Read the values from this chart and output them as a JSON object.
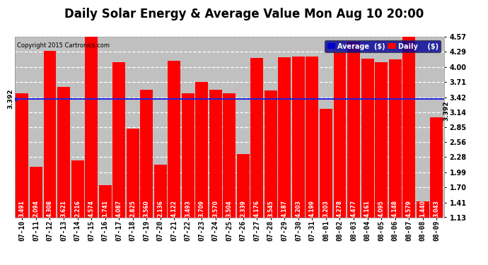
{
  "title": "Daily Solar Energy & Average Value Mon Aug 10 20:00",
  "copyright": "Copyright 2015 Cartronics.com",
  "categories": [
    "07-10",
    "07-11",
    "07-12",
    "07-13",
    "07-14",
    "07-15",
    "07-16",
    "07-17",
    "07-18",
    "07-19",
    "07-20",
    "07-21",
    "07-22",
    "07-23",
    "07-24",
    "07-25",
    "07-26",
    "07-27",
    "07-28",
    "07-29",
    "07-30",
    "07-31",
    "08-01",
    "08-02",
    "08-03",
    "08-04",
    "08-05",
    "08-06",
    "08-07",
    "08-08",
    "08-09"
  ],
  "values": [
    3.491,
    2.094,
    4.308,
    3.621,
    2.216,
    4.574,
    1.741,
    4.087,
    2.825,
    3.56,
    2.136,
    4.122,
    3.493,
    3.709,
    3.57,
    3.504,
    2.339,
    4.176,
    3.545,
    4.187,
    4.203,
    4.199,
    3.203,
    4.278,
    4.477,
    4.161,
    4.095,
    4.148,
    4.579,
    1.44,
    3.043
  ],
  "bar_color": "#ff0000",
  "average": 3.392,
  "average_color": "#2222dd",
  "yticks": [
    1.13,
    1.41,
    1.7,
    1.99,
    2.28,
    2.56,
    2.85,
    3.14,
    3.42,
    3.71,
    4.0,
    4.29,
    4.57
  ],
  "ytick_labels": [
    "1.13",
    "1.41",
    "1.70",
    "1.99",
    "2.28",
    "2.56",
    "2.85",
    "3.14",
    "3.42",
    "3.71",
    "4.00",
    "4.29",
    "4.57"
  ],
  "ymin": 1.13,
  "ymax": 4.57,
  "background_color": "#ffffff",
  "plot_bg_color": "#c0c0c0",
  "grid_color": "#ffffff",
  "title_fontsize": 12,
  "tick_fontsize": 7,
  "bar_label_fontsize": 5.5,
  "legend_avg_color": "#0000cc",
  "legend_daily_color": "#ff0000",
  "avg_label": "3.392",
  "legend_bg": "#000099"
}
